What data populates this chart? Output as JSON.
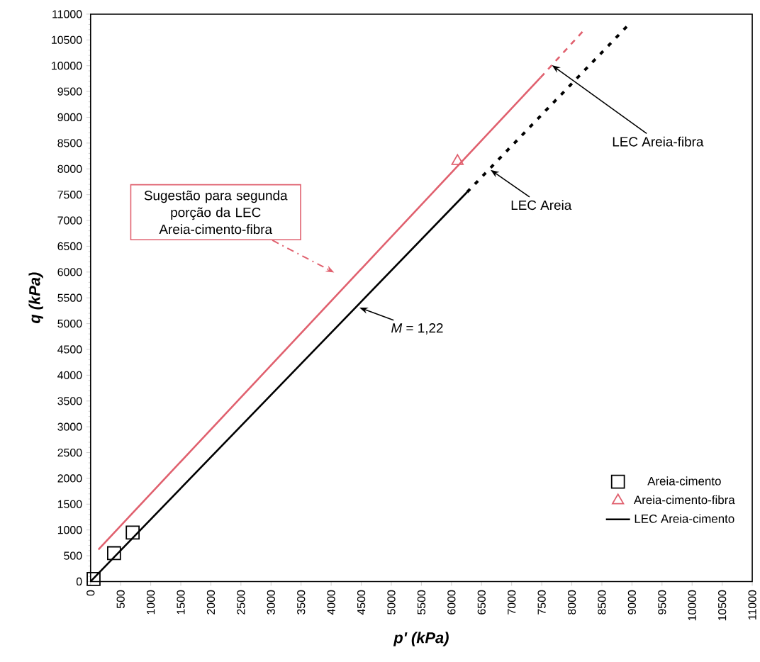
{
  "chart_data": {
    "type": "scatter",
    "xlabel": "*p' (kPa)*",
    "ylabel": "*q (kPa)*",
    "xlim": [
      0,
      11000
    ],
    "ylim": [
      0,
      11000
    ],
    "xticks": [
      0,
      500,
      1000,
      1500,
      2000,
      2500,
      3000,
      3500,
      4000,
      4500,
      5000,
      5500,
      6000,
      6500,
      7000,
      7500,
      8000,
      8500,
      9000,
      9500,
      10000,
      10500,
      11000
    ],
    "yticks": [
      0,
      500,
      1000,
      1500,
      2000,
      2500,
      3000,
      3500,
      4000,
      4500,
      5000,
      5500,
      6000,
      6500,
      7000,
      7500,
      8000,
      8500,
      9000,
      9500,
      10000,
      10500,
      11000
    ],
    "grid": false,
    "legend": "bottom right",
    "series": [
      {
        "name": "Areia-cimento",
        "marker": "square",
        "color": "#000000",
        "x": [
          50,
          390,
          700
        ],
        "values": [
          50,
          550,
          950
        ]
      },
      {
        "name": "Areia-cimento-fibra",
        "marker": "triangle",
        "color": "#e0606e",
        "x": [
          6100
        ],
        "values": [
          8150
        ]
      },
      {
        "name": "LEC Areia-cimento",
        "type": "line",
        "marker": "none",
        "line_style": "solid",
        "color": "#000000",
        "x": [
          0,
          6260
        ],
        "values": [
          0,
          7550
        ]
      },
      {
        "type": "line",
        "marker": "none",
        "line_style": "dotted",
        "color": "#000000",
        "x": [
          6260,
          8965
        ],
        "values": [
          7550,
          10820
        ]
      },
      {
        "type": "line",
        "marker": "none",
        "line_style": "solid",
        "color": "#e0606e",
        "x": [
          130,
          7480
        ],
        "values": [
          620,
          9770
        ]
      },
      {
        "type": "line",
        "marker": "none",
        "line_style": "dashed",
        "color": "#e0606e",
        "x": [
          7480,
          8210
        ],
        "values": [
          9770,
          10700
        ]
      }
    ],
    "annotations": [
      "Sugestão para segunda porção da LEC Areia-cimento-fibra",
      {
        "text": "LEC Areia",
        "x": 6650,
        "y": 7980
      },
      {
        "text": "LEC Areia-fibra",
        "x": 7670,
        "y": 10010
      },
      {
        "text": "*M* = 1,22",
        "x": 4470,
        "y": 5310
      }
    ]
  }
}
